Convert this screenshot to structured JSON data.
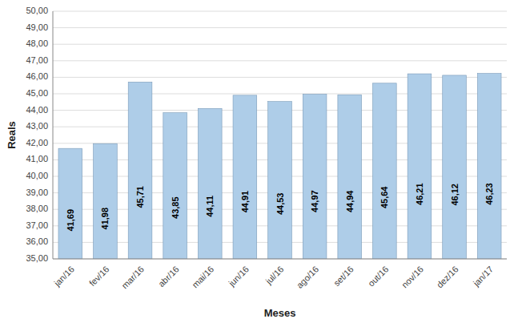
{
  "chart_data": {
    "type": "bar",
    "categories": [
      "jan/16",
      "fev/16",
      "mar/16",
      "abr/16",
      "mai/16",
      "jun/16",
      "jul/16",
      "ago/16",
      "set/16",
      "out/16",
      "nov/16",
      "dez/16",
      "jan/17"
    ],
    "values": [
      41.69,
      41.98,
      45.71,
      43.85,
      44.11,
      44.91,
      44.53,
      44.97,
      44.94,
      45.64,
      46.21,
      46.12,
      46.23
    ],
    "value_labels": [
      "41,69",
      "41,98",
      "45,71",
      "43,85",
      "44,11",
      "44,91",
      "44,53",
      "44,97",
      "44,94",
      "45,64",
      "46,21",
      "46,12",
      "46,23"
    ],
    "data_labels": true,
    "color": "#AECDE8",
    "xlabel": "Meses",
    "ylabel": "Reals",
    "ylim": [
      35.0,
      50.0
    ],
    "yticks": [
      {
        "value": 35.0,
        "label": "35,00"
      },
      {
        "value": 36.0,
        "label": "36,00"
      },
      {
        "value": 37.0,
        "label": "37,00"
      },
      {
        "value": 38.0,
        "label": "38,00"
      },
      {
        "value": 39.0,
        "label": "39,00"
      },
      {
        "value": 40.0,
        "label": "40,00"
      },
      {
        "value": 41.0,
        "label": "41,00"
      },
      {
        "value": 42.0,
        "label": "42,00"
      },
      {
        "value": 43.0,
        "label": "43,00"
      },
      {
        "value": 44.0,
        "label": "44,00"
      },
      {
        "value": 45.0,
        "label": "45,00"
      },
      {
        "value": 46.0,
        "label": "46,00"
      },
      {
        "value": 47.0,
        "label": "47,00"
      },
      {
        "value": 48.0,
        "label": "48,00"
      },
      {
        "value": 49.0,
        "label": "49,00"
      },
      {
        "value": 50.0,
        "label": "50,00"
      }
    ],
    "grid": true
  }
}
